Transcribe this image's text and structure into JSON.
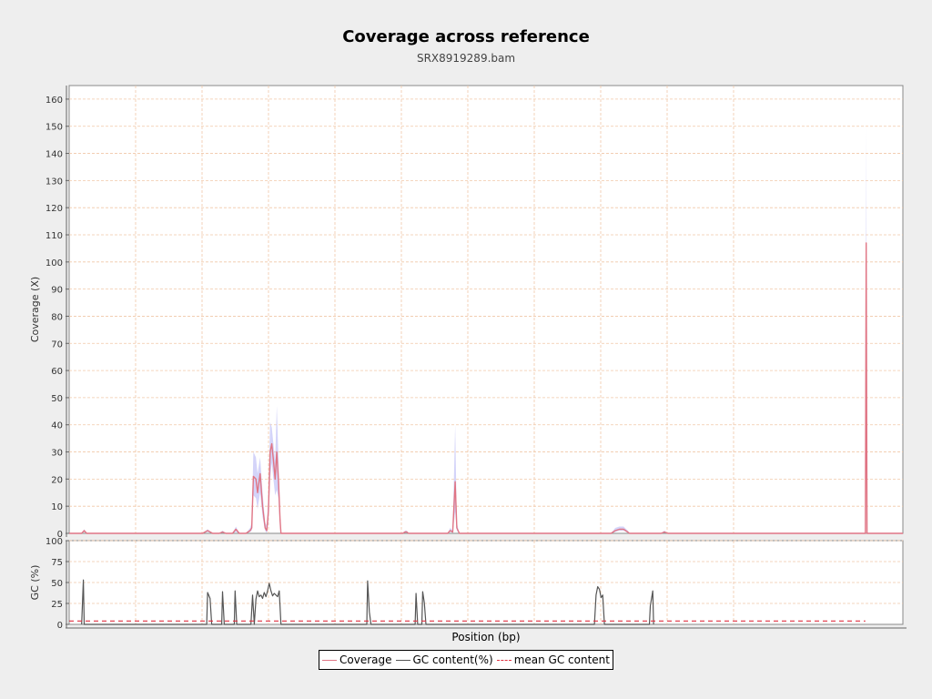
{
  "chart": {
    "title": "Coverage across reference",
    "subtitle": "SRX8919289.bam",
    "ylabel_top": "Coverage (X)",
    "ylabel_bottom": "GC (%)",
    "xlabel": "Position (bp)"
  },
  "legend": {
    "coverage": "Coverage",
    "gc": "GC content(%)",
    "mean_gc": "mean GC content"
  },
  "colors": {
    "coverage": "#e07585",
    "coverage_band": "#c5c5f7",
    "gc": "#555555",
    "mean_gc": "#e03040",
    "grid": "#f0c8a8"
  },
  "chart_data": [
    {
      "type": "line",
      "title": "Coverage across reference",
      "subtitle": "SRX8919289.bam",
      "ylabel": "Coverage (X)",
      "ylim": [
        0,
        165
      ],
      "yticks": [
        0,
        10,
        20,
        30,
        40,
        50,
        60,
        70,
        80,
        90,
        100,
        110,
        120,
        130,
        140,
        150,
        160
      ],
      "xlim": [
        0,
        1000
      ],
      "grid": true,
      "series": [
        {
          "name": "Coverage",
          "x": [
            0,
            15,
            18,
            21,
            24,
            160,
            166,
            172,
            180,
            184,
            188,
            196,
            200,
            204,
            212,
            217,
            219,
            221,
            224,
            226,
            229,
            232,
            235,
            237,
            239,
            241,
            243,
            245,
            247,
            249,
            251,
            253,
            254,
            256,
            400,
            403,
            405,
            407,
            450,
            454,
            457,
            460,
            463,
            465,
            468,
            650,
            655,
            660,
            665,
            670,
            672,
            710,
            714,
            718,
            950,
            955,
            956,
            957,
            1000
          ],
          "y": [
            0,
            0,
            1,
            0,
            0,
            0,
            1,
            0,
            0,
            0.5,
            0,
            0,
            1.5,
            0,
            0,
            1,
            2,
            21,
            20,
            15,
            22,
            10,
            2,
            1,
            8,
            30,
            33,
            27,
            20,
            30,
            20,
            5,
            0,
            0,
            0,
            0.5,
            0.5,
            0,
            0,
            0,
            1,
            0.5,
            19,
            2,
            0,
            0,
            1,
            1.5,
            1.5,
            0.5,
            0,
            0,
            0.5,
            0,
            0,
            0,
            107,
            0,
            0
          ]
        },
        {
          "name": "",
          "x": [
            0,
            15,
            18,
            21,
            24,
            160,
            166,
            172,
            180,
            184,
            188,
            196,
            200,
            204,
            212,
            217,
            219,
            221,
            224,
            226,
            229,
            232,
            235,
            237,
            239,
            241,
            243,
            245,
            247,
            249,
            251,
            253,
            254,
            256,
            400,
            403,
            405,
            407,
            450,
            454,
            457,
            460,
            463,
            465,
            468,
            650,
            655,
            660,
            665,
            670,
            672,
            710,
            714,
            718,
            950,
            955,
            956,
            957,
            1000
          ],
          "y": [
            0,
            0,
            1.5,
            0,
            0,
            0,
            1.5,
            0,
            0,
            1,
            0,
            0,
            2.5,
            0,
            0,
            2,
            4,
            30,
            28,
            22,
            28,
            15,
            4,
            3,
            14,
            41,
            39,
            33,
            27,
            47,
            28,
            8,
            0,
            0,
            0,
            1,
            1,
            0,
            0,
            0,
            2,
            1,
            40,
            4,
            0,
            0,
            2,
            2.5,
            2.5,
            1,
            0,
            0,
            1,
            0,
            0,
            0,
            150,
            0,
            0
          ]
        },
        {
          "name": "",
          "x": [
            0,
            15,
            18,
            21,
            24,
            160,
            166,
            172,
            180,
            184,
            188,
            196,
            200,
            204,
            212,
            217,
            219,
            221,
            224,
            226,
            229,
            232,
            235,
            237,
            239,
            241,
            243,
            245,
            247,
            249,
            251,
            253,
            254,
            256,
            400,
            403,
            405,
            407,
            450,
            454,
            457,
            460,
            463,
            465,
            468,
            650,
            655,
            660,
            665,
            670,
            672,
            710,
            714,
            718,
            950,
            955,
            956,
            957,
            1000
          ],
          "y": [
            0,
            0,
            0.5,
            0,
            0,
            0,
            0.5,
            0,
            0,
            0.2,
            0,
            0,
            0.5,
            0,
            0,
            0.5,
            1,
            14,
            13,
            9,
            15,
            6,
            1,
            0,
            4,
            20,
            26,
            20,
            14,
            16,
            13,
            2,
            0,
            0,
            0,
            0.2,
            0.2,
            0,
            0,
            0,
            0.5,
            0.2,
            8,
            1,
            0,
            0,
            0.5,
            1,
            1,
            0.2,
            0,
            0,
            0.2,
            0,
            0,
            0,
            70,
            0,
            0
          ]
        }
      ]
    },
    {
      "type": "line",
      "ylabel": "GC (%)",
      "xlabel": "Position (bp)",
      "ylim": [
        0,
        100
      ],
      "yticks": [
        0,
        25,
        50,
        75,
        100
      ],
      "xlim": [
        0,
        1000
      ],
      "grid": true,
      "series": [
        {
          "name": "GC content(%)",
          "x": [
            15,
            17,
            18,
            19,
            20,
            165,
            166,
            169,
            171,
            183,
            184,
            186,
            198,
            199,
            201,
            218,
            220,
            222,
            224,
            226,
            228,
            230,
            232,
            234,
            236,
            238,
            240,
            242,
            244,
            246,
            248,
            250,
            252,
            254,
            357,
            358,
            360,
            362,
            415,
            416,
            418,
            423,
            424,
            426,
            428,
            630,
            632,
            634,
            636,
            638,
            640,
            642,
            643,
            696,
            697,
            700,
            701
          ],
          "y": [
            0,
            53,
            0,
            0,
            0,
            0,
            38,
            31,
            0,
            0,
            39,
            0,
            0,
            40,
            0,
            0,
            35,
            0,
            30,
            40,
            33,
            35,
            31,
            38,
            33,
            40,
            49,
            40,
            34,
            37,
            35,
            33,
            40,
            0,
            0,
            52,
            15,
            0,
            0,
            37,
            0,
            0,
            39,
            26,
            0,
            0,
            35,
            45,
            42,
            32,
            35,
            0,
            0,
            0,
            22,
            40,
            0
          ]
        },
        {
          "name": "mean GC content",
          "x": [
            0,
            955
          ],
          "y": [
            4,
            4
          ]
        }
      ]
    }
  ]
}
